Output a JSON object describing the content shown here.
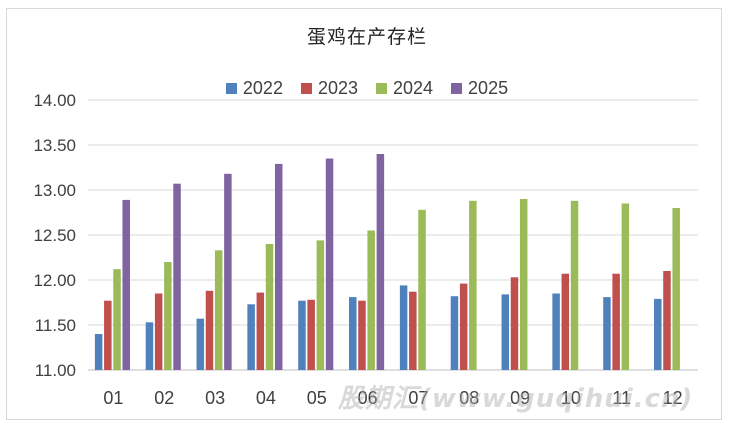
{
  "chart_data": {
    "type": "bar",
    "title": "蛋鸡在产存栏",
    "xlabel": "",
    "ylabel": "",
    "ylim": [
      11.0,
      14.0
    ],
    "yticks": [
      "11.00",
      "11.50",
      "12.00",
      "12.50",
      "13.00",
      "13.50",
      "14.00"
    ],
    "categories": [
      "01",
      "02",
      "03",
      "04",
      "05",
      "06",
      "07",
      "08",
      "09",
      "10",
      "11",
      "12"
    ],
    "grid": true,
    "legend_position": "top",
    "series": [
      {
        "name": "2022",
        "color": "#4f81bd",
        "values": [
          11.4,
          11.53,
          11.57,
          11.73,
          11.77,
          11.81,
          11.94,
          11.82,
          11.84,
          11.85,
          11.81,
          11.79
        ]
      },
      {
        "name": "2023",
        "color": "#c0504d",
        "values": [
          11.77,
          11.85,
          11.88,
          11.86,
          11.78,
          11.77,
          11.87,
          11.96,
          12.03,
          12.07,
          12.07,
          12.1
        ]
      },
      {
        "name": "2024",
        "color": "#9bbb59",
        "values": [
          12.12,
          12.2,
          12.33,
          12.4,
          12.44,
          12.55,
          12.78,
          12.88,
          12.9,
          12.88,
          12.85,
          12.8
        ]
      },
      {
        "name": "2025",
        "color": "#8064a2",
        "values": [
          12.89,
          13.07,
          13.18,
          13.29,
          13.35,
          13.4,
          null,
          null,
          null,
          null,
          null,
          null
        ]
      }
    ]
  },
  "watermark": "股期汇(www.guqihui.cn)"
}
